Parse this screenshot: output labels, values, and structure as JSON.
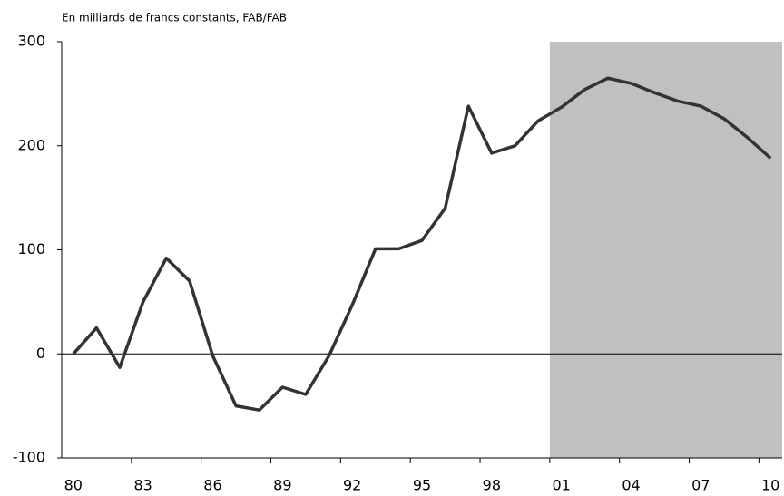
{
  "chart_data": {
    "type": "line",
    "title": "En milliards de francs constants, FAB/FAB",
    "categories": [
      "80",
      null,
      null,
      "83",
      null,
      null,
      "86",
      null,
      null,
      "89",
      null,
      null,
      "92",
      null,
      null,
      "95",
      null,
      null,
      "98",
      null,
      null,
      "01",
      null,
      null,
      "04",
      null,
      null,
      "07",
      null,
      null,
      "10"
    ],
    "series": [
      {
        "color": "#333333",
        "values": [
          0,
          25,
          -13,
          50,
          92,
          70,
          -2,
          -50,
          -54,
          -32,
          -39,
          -2,
          47,
          101,
          101,
          109,
          140,
          238,
          193,
          200,
          224,
          237,
          254,
          265,
          260,
          251,
          243,
          238,
          226,
          208,
          188
        ]
      }
    ],
    "ylim": [
      -100,
      300
    ],
    "yticks": [
      -100,
      0,
      100,
      200,
      300
    ],
    "shaded_categories": [
      "01",
      "10"
    ],
    "shade_color": "#c0c0c0",
    "zero_line": true
  }
}
